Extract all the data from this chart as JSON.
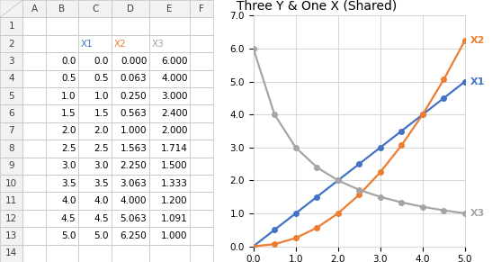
{
  "title": "Three Y & One X (Shared)",
  "x": [
    0.0,
    0.5,
    1.0,
    1.5,
    2.0,
    2.5,
    3.0,
    3.5,
    4.0,
    4.5,
    5.0
  ],
  "y_x1": [
    0.0,
    0.5,
    1.0,
    1.5,
    2.0,
    2.5,
    3.0,
    3.5,
    4.0,
    4.5,
    5.0
  ],
  "y_x2": [
    0.0,
    0.063,
    0.25,
    0.563,
    1.0,
    1.563,
    2.25,
    3.063,
    4.0,
    5.063,
    6.25
  ],
  "y_x3": [
    6.0,
    4.0,
    3.0,
    2.4,
    2.0,
    1.714,
    1.5,
    1.333,
    1.2,
    1.091,
    1.0
  ],
  "color_x1": "#4472C4",
  "color_x2": "#ED7D31",
  "color_x3": "#A5A5A5",
  "label_x1": "X1",
  "label_x2": "X2",
  "label_x3": "X3",
  "xlim": [
    0.0,
    5.0
  ],
  "ylim": [
    0.0,
    7.0
  ],
  "xticks": [
    0.0,
    1.0,
    2.0,
    3.0,
    4.0,
    5.0
  ],
  "yticks": [
    0.0,
    1.0,
    2.0,
    3.0,
    4.0,
    5.0,
    6.0,
    7.0
  ],
  "bg_color": "#FFFFFF",
  "excel_bg": "#F2F2F2",
  "grid_color": "#D0D0D0",
  "cell_border": "#BFBFBF",
  "header_bg": "#D9D9D9",
  "title_fontsize": 10,
  "axis_fontsize": 7.5,
  "label_fontsize": 8,
  "cell_fontsize": 7.5,
  "header_fontsize": 8,
  "marker": "o",
  "marker_size": 4,
  "line_width": 1.6,
  "col_headers": [
    "A",
    "B",
    "C",
    "D",
    "E",
    "F"
  ],
  "row_headers": [
    "1",
    "2",
    "3",
    "4",
    "5",
    "6",
    "7",
    "8",
    "9",
    "10",
    "11",
    "12",
    "13",
    "14"
  ],
  "table_headers": [
    "",
    "X1",
    "X2",
    "X3"
  ],
  "table_col_b": [
    0.0,
    0.5,
    1.0,
    1.5,
    2.0,
    2.5,
    3.0,
    3.5,
    4.0,
    4.5,
    5.0
  ],
  "table_col_c": [
    0.0,
    0.5,
    1.0,
    1.5,
    2.0,
    2.5,
    3.0,
    3.5,
    4.0,
    4.5,
    5.0
  ],
  "table_col_d": [
    0.0,
    0.063,
    0.25,
    0.563,
    1.0,
    1.563,
    2.25,
    3.063,
    4.0,
    5.063,
    6.25
  ],
  "table_col_e": [
    6.0,
    4.0,
    3.0,
    2.4,
    2.0,
    1.714,
    1.5,
    1.333,
    1.2,
    1.091,
    1.0
  ]
}
